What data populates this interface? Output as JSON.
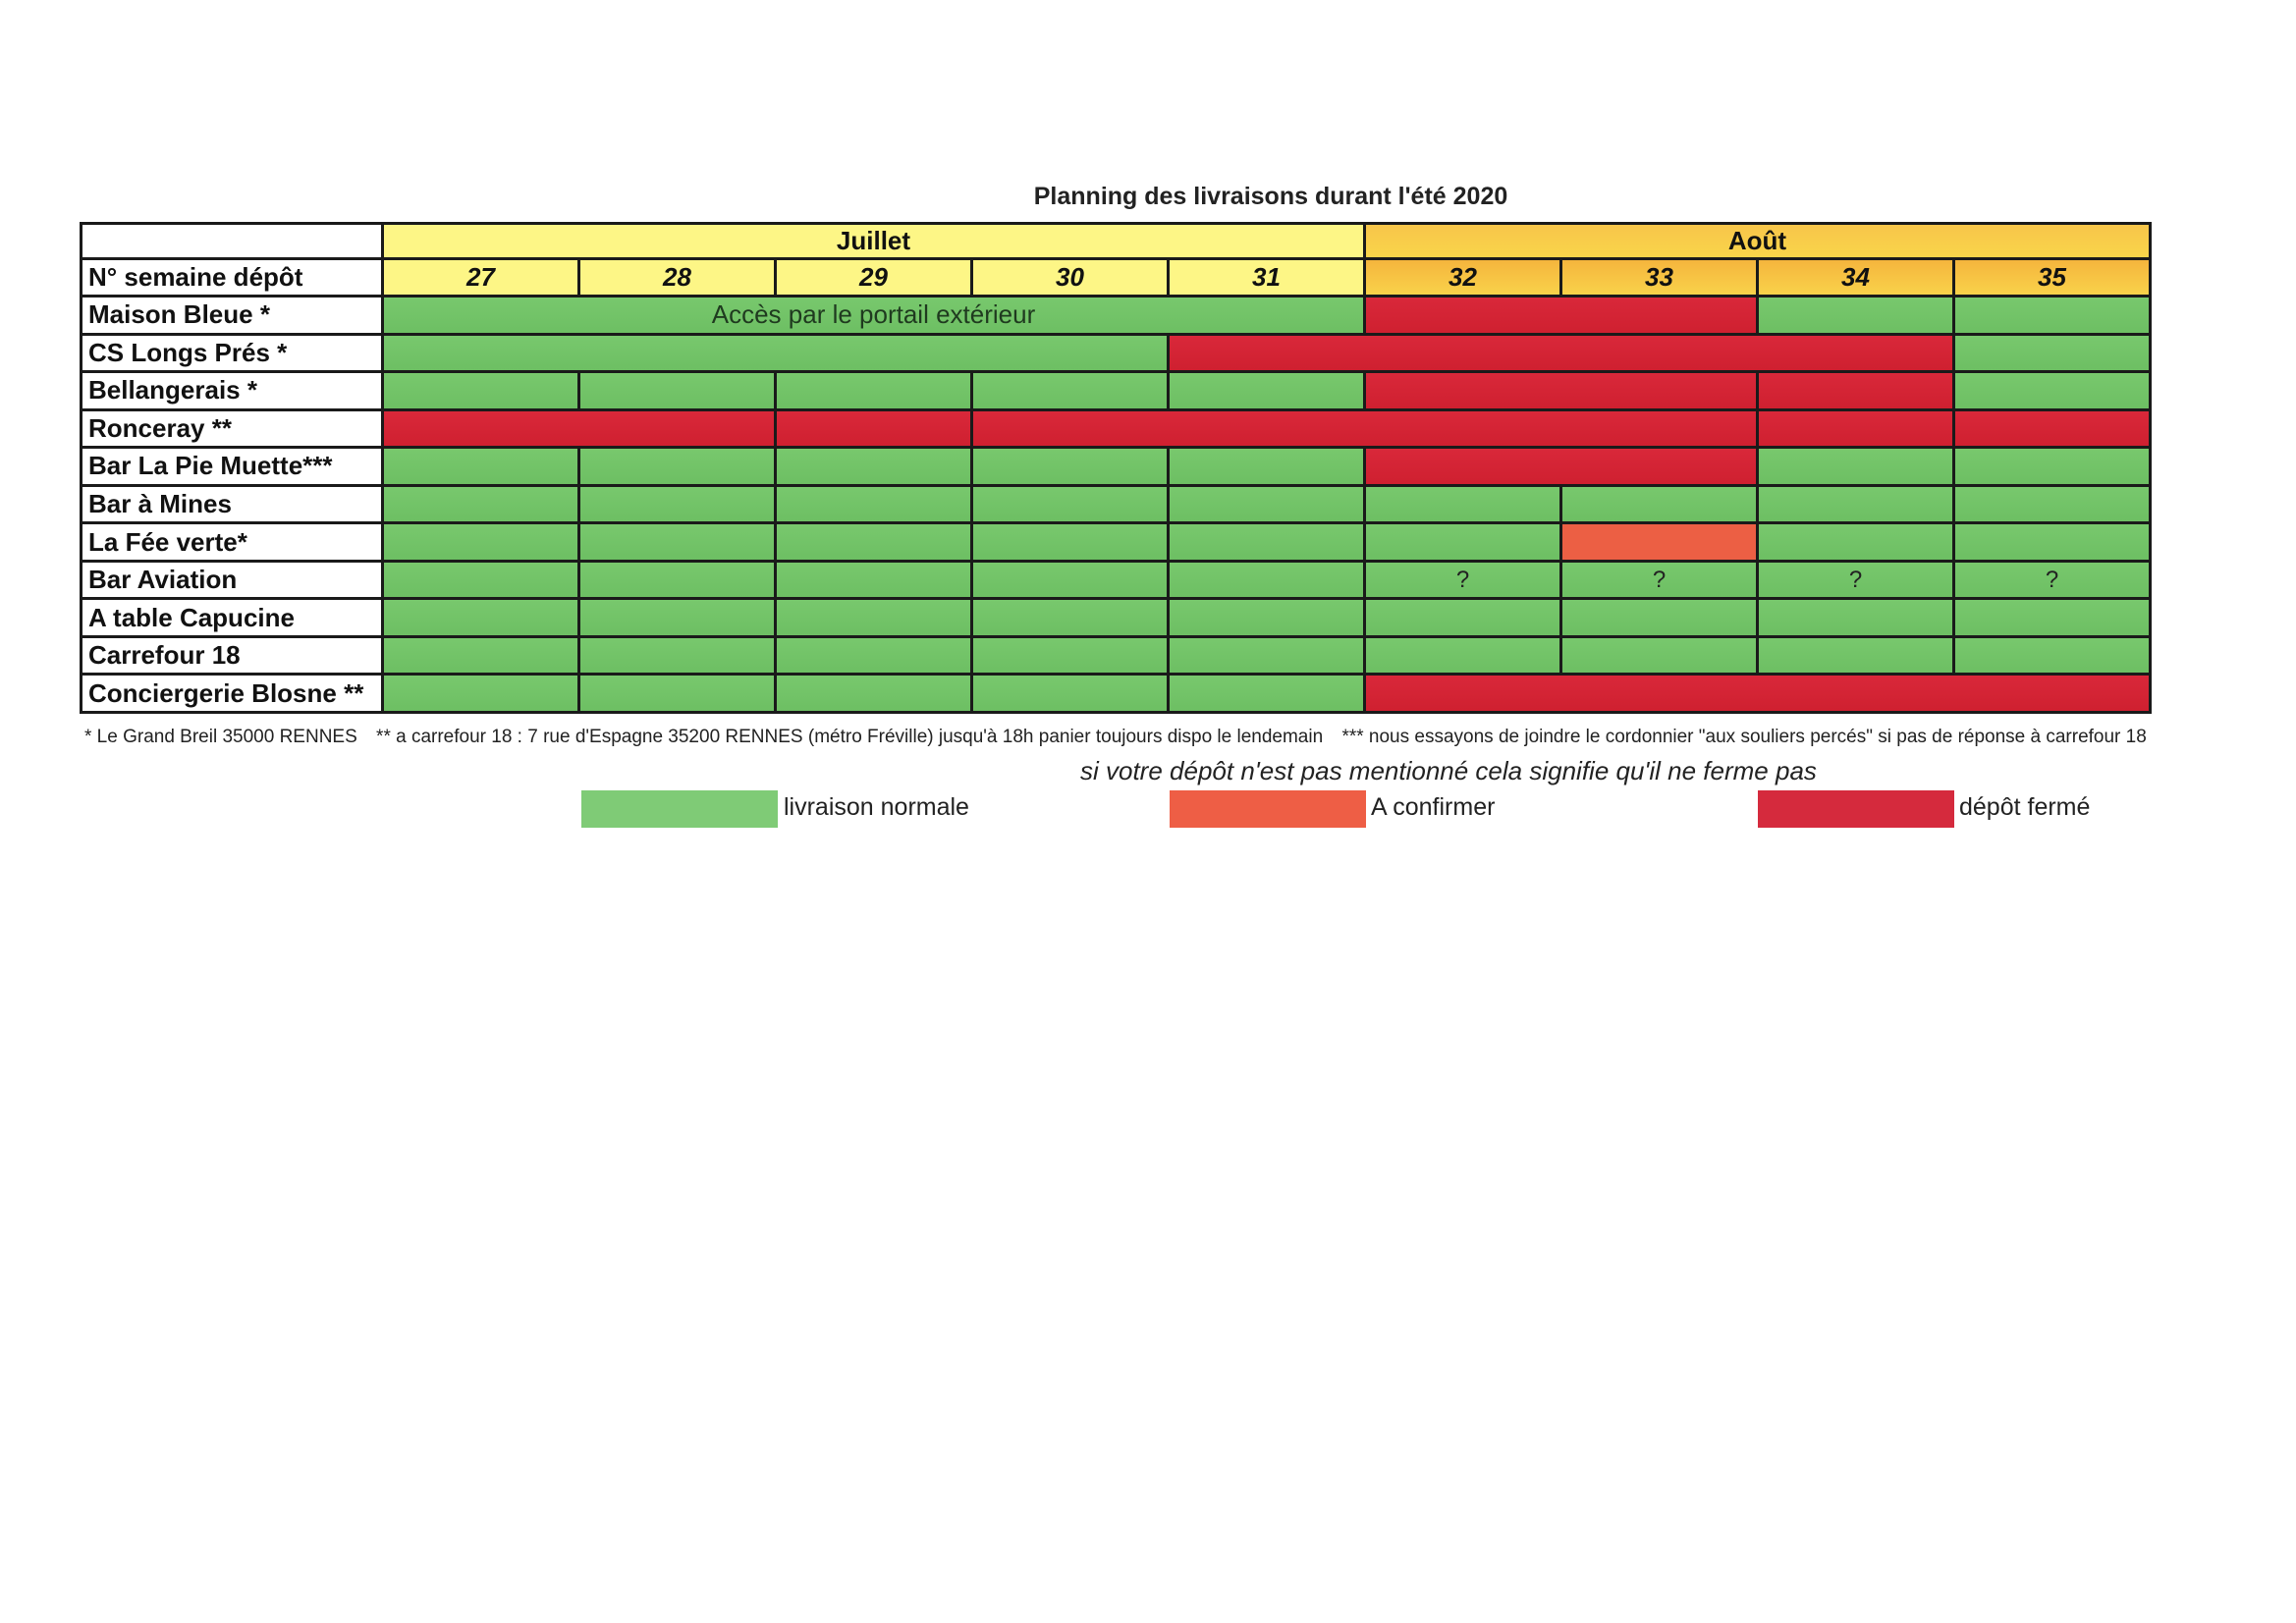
{
  "title": "Planning des livraisons durant l'été 2020",
  "header": {
    "corner": "",
    "months": [
      {
        "label": "Juillet",
        "span": 5,
        "tone": "juillet"
      },
      {
        "label": "Août",
        "span": 4,
        "tone": "aout"
      }
    ],
    "week_row_label": "N° semaine dépôt",
    "weeks": [
      "27",
      "28",
      "29",
      "30",
      "31",
      "32",
      "33",
      "34",
      "35"
    ]
  },
  "colors": {
    "green": "#6dbf63",
    "orange": "#ec5f44",
    "red": "#d52a3d",
    "juillet_header": "#fdf686",
    "aout_header": "#f7c54a"
  },
  "rows": [
    {
      "name": "Maison Bleue *",
      "segments": [
        {
          "span": 5,
          "status": "green",
          "text": "Accès par le portail extérieur"
        },
        {
          "span": 2,
          "status": "red",
          "text": ""
        },
        {
          "span": 1,
          "status": "green",
          "text": ""
        },
        {
          "span": 1,
          "status": "green",
          "text": ""
        }
      ]
    },
    {
      "name": "CS Longs Prés *",
      "segments": [
        {
          "span": 4,
          "status": "green",
          "text": ""
        },
        {
          "span": 4,
          "status": "red",
          "text": ""
        },
        {
          "span": 1,
          "status": "green",
          "text": ""
        }
      ]
    },
    {
      "name": "Bellangerais *",
      "segments": [
        {
          "span": 1,
          "status": "green",
          "text": ""
        },
        {
          "span": 1,
          "status": "green",
          "text": ""
        },
        {
          "span": 1,
          "status": "green",
          "text": ""
        },
        {
          "span": 1,
          "status": "green",
          "text": ""
        },
        {
          "span": 1,
          "status": "green",
          "text": ""
        },
        {
          "span": 2,
          "status": "red",
          "text": ""
        },
        {
          "span": 1,
          "status": "red",
          "text": ""
        },
        {
          "span": 1,
          "status": "green",
          "text": ""
        }
      ]
    },
    {
      "name": "Ronceray **",
      "segments": [
        {
          "span": 2,
          "status": "red",
          "text": ""
        },
        {
          "span": 1,
          "status": "red",
          "text": ""
        },
        {
          "span": 4,
          "status": "red",
          "text": ""
        },
        {
          "span": 1,
          "status": "red",
          "text": ""
        },
        {
          "span": 1,
          "status": "red",
          "text": ""
        }
      ]
    },
    {
      "name": "Bar La Pie Muette***",
      "segments": [
        {
          "span": 1,
          "status": "green",
          "text": ""
        },
        {
          "span": 1,
          "status": "green",
          "text": ""
        },
        {
          "span": 1,
          "status": "green",
          "text": ""
        },
        {
          "span": 1,
          "status": "green",
          "text": ""
        },
        {
          "span": 1,
          "status": "green",
          "text": ""
        },
        {
          "span": 2,
          "status": "red",
          "text": ""
        },
        {
          "span": 1,
          "status": "green",
          "text": ""
        },
        {
          "span": 1,
          "status": "green",
          "text": ""
        }
      ]
    },
    {
      "name": "Bar à Mines",
      "segments": [
        {
          "span": 1,
          "status": "green",
          "text": ""
        },
        {
          "span": 1,
          "status": "green",
          "text": ""
        },
        {
          "span": 1,
          "status": "green",
          "text": ""
        },
        {
          "span": 1,
          "status": "green",
          "text": ""
        },
        {
          "span": 1,
          "status": "green",
          "text": ""
        },
        {
          "span": 1,
          "status": "green",
          "text": ""
        },
        {
          "span": 1,
          "status": "green",
          "text": ""
        },
        {
          "span": 1,
          "status": "green",
          "text": ""
        },
        {
          "span": 1,
          "status": "green",
          "text": ""
        }
      ]
    },
    {
      "name": "La Fée verte*",
      "segments": [
        {
          "span": 1,
          "status": "green",
          "text": ""
        },
        {
          "span": 1,
          "status": "green",
          "text": ""
        },
        {
          "span": 1,
          "status": "green",
          "text": ""
        },
        {
          "span": 1,
          "status": "green",
          "text": ""
        },
        {
          "span": 1,
          "status": "green",
          "text": ""
        },
        {
          "span": 1,
          "status": "green",
          "text": ""
        },
        {
          "span": 1,
          "status": "orange",
          "text": ""
        },
        {
          "span": 1,
          "status": "green",
          "text": ""
        },
        {
          "span": 1,
          "status": "green",
          "text": ""
        }
      ]
    },
    {
      "name": "Bar Aviation",
      "segments": [
        {
          "span": 1,
          "status": "green",
          "text": ""
        },
        {
          "span": 1,
          "status": "green",
          "text": ""
        },
        {
          "span": 1,
          "status": "green",
          "text": ""
        },
        {
          "span": 1,
          "status": "green",
          "text": ""
        },
        {
          "span": 1,
          "status": "green",
          "text": ""
        },
        {
          "span": 1,
          "status": "green",
          "text": "?"
        },
        {
          "span": 1,
          "status": "green",
          "text": "?"
        },
        {
          "span": 1,
          "status": "green",
          "text": "?"
        },
        {
          "span": 1,
          "status": "green",
          "text": "?"
        }
      ]
    },
    {
      "name": "A table Capucine",
      "segments": [
        {
          "span": 1,
          "status": "green",
          "text": ""
        },
        {
          "span": 1,
          "status": "green",
          "text": ""
        },
        {
          "span": 1,
          "status": "green",
          "text": ""
        },
        {
          "span": 1,
          "status": "green",
          "text": ""
        },
        {
          "span": 1,
          "status": "green",
          "text": ""
        },
        {
          "span": 1,
          "status": "green",
          "text": ""
        },
        {
          "span": 1,
          "status": "green",
          "text": ""
        },
        {
          "span": 1,
          "status": "green",
          "text": ""
        },
        {
          "span": 1,
          "status": "green",
          "text": ""
        }
      ]
    },
    {
      "name": "Carrefour 18",
      "segments": [
        {
          "span": 1,
          "status": "green",
          "text": ""
        },
        {
          "span": 1,
          "status": "green",
          "text": ""
        },
        {
          "span": 1,
          "status": "green",
          "text": ""
        },
        {
          "span": 1,
          "status": "green",
          "text": ""
        },
        {
          "span": 1,
          "status": "green",
          "text": ""
        },
        {
          "span": 1,
          "status": "green",
          "text": ""
        },
        {
          "span": 1,
          "status": "green",
          "text": ""
        },
        {
          "span": 1,
          "status": "green",
          "text": ""
        },
        {
          "span": 1,
          "status": "green",
          "text": ""
        }
      ]
    },
    {
      "name": "Conciergerie Blosne **",
      "segments": [
        {
          "span": 1,
          "status": "green",
          "text": ""
        },
        {
          "span": 1,
          "status": "green",
          "text": ""
        },
        {
          "span": 1,
          "status": "green",
          "text": ""
        },
        {
          "span": 1,
          "status": "green",
          "text": ""
        },
        {
          "span": 1,
          "status": "green",
          "text": ""
        },
        {
          "span": 4,
          "status": "red",
          "text": ""
        }
      ]
    }
  ],
  "footnotes": [
    "* Le Grand Breil 35000 RENNES",
    "** a carrefour 18 : 7 rue d'Espagne 35200 RENNES (métro Fréville) jusqu'à 18h panier toujours dispo le lendemain",
    "*** nous essayons de joindre le cordonnier \"aux souliers percés\" si pas de réponse à carrefour 18"
  ],
  "note": "si votre dépôt n'est pas mentionné cela signifie qu'il ne ferme pas",
  "legend": [
    {
      "status": "green",
      "label": "livraison normale"
    },
    {
      "status": "orange",
      "label": "A confirmer"
    },
    {
      "status": "red",
      "label": "dépôt fermé"
    }
  ]
}
